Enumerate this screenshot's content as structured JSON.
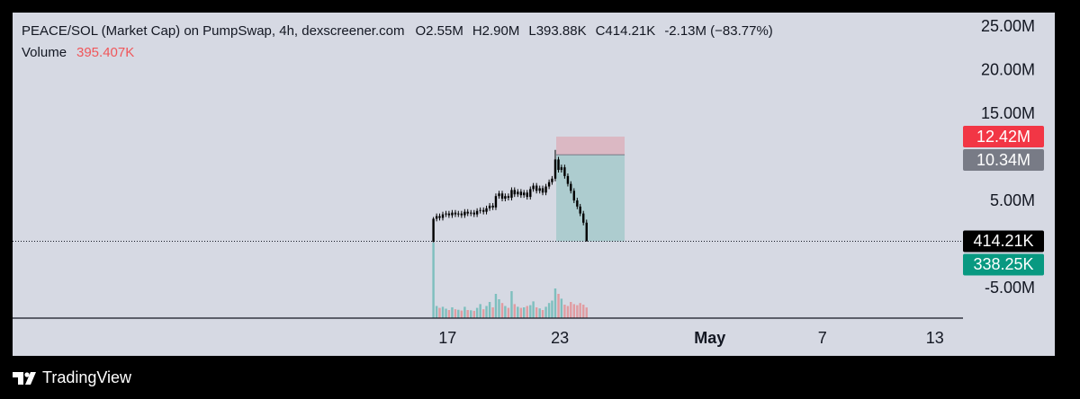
{
  "chart_data": {
    "type": "candlestick",
    "header": {
      "title": "PEACE/SOL (Market Cap) on PumpSwap, 4h, dexscreener.com",
      "ohlc": [
        "O2.55M",
        "H2.90M",
        "L393.88K",
        "C414.21K"
      ],
      "change": "-2.13M (−83.77%)",
      "volume_label": "Volume",
      "volume_value": "395.407K"
    },
    "brand": "TradingView",
    "x": [
      16.25,
      16.42,
      16.58,
      16.75,
      16.92,
      17.08,
      17.25,
      17.42,
      17.58,
      17.75,
      17.92,
      18.08,
      18.25,
      18.42,
      18.58,
      18.75,
      18.92,
      19.08,
      19.25,
      19.42,
      19.58,
      19.75,
      19.92,
      20.08,
      20.25,
      20.42,
      20.58,
      20.75,
      20.92,
      21.08,
      21.25,
      21.42,
      21.58,
      21.75,
      21.92,
      22.08,
      22.25,
      22.42,
      22.58,
      22.75,
      22.92,
      23.08,
      23.25,
      23.42,
      23.58,
      23.75,
      23.92,
      24.08,
      24.25,
      24.42
    ],
    "open": [
      350000,
      3000000,
      3300000,
      3100000,
      3500000,
      3600000,
      3400000,
      3700000,
      3500000,
      3600000,
      3400000,
      3800000,
      3600000,
      3700000,
      3500000,
      3900000,
      4000000,
      3800000,
      4200000,
      4500000,
      4300000,
      5600000,
      5900000,
      5300000,
      5600000,
      5400000,
      6300000,
      5800000,
      6100000,
      5700000,
      6000000,
      5500000,
      6400000,
      6800000,
      6200000,
      6500000,
      6000000,
      6700000,
      7200000,
      7600000,
      9800000,
      8600000,
      8900000,
      7900000,
      7000000,
      6200000,
      5100000,
      4400000,
      3600000,
      2550000
    ],
    "high": [
      3200000,
      3600000,
      3600000,
      3800000,
      3900000,
      3900000,
      4000000,
      4000000,
      3900000,
      3900000,
      4100000,
      4100000,
      4000000,
      4000000,
      4200000,
      4300000,
      4300000,
      4500000,
      4800000,
      4800000,
      5900000,
      6200000,
      6200000,
      5900000,
      5900000,
      6600000,
      6600000,
      6400000,
      6400000,
      6300000,
      6300000,
      6700000,
      7100000,
      7100000,
      6800000,
      6800000,
      7000000,
      7500000,
      7900000,
      10900000,
      10100000,
      9200000,
      9200000,
      8200000,
      7300000,
      6500000,
      5400000,
      4700000,
      3900000,
      2900000
    ],
    "low": [
      300000,
      2700000,
      2800000,
      2800000,
      3200000,
      3100000,
      3100000,
      3200000,
      3200000,
      3100000,
      3100000,
      3300000,
      3300000,
      3200000,
      3200000,
      3600000,
      3500000,
      3500000,
      3900000,
      4000000,
      4000000,
      5300000,
      5000000,
      5000000,
      5100000,
      5100000,
      5500000,
      5500000,
      5400000,
      5400000,
      5200000,
      5200000,
      6100000,
      5900000,
      5900000,
      5700000,
      5700000,
      6400000,
      6900000,
      7300000,
      8300000,
      8300000,
      7600000,
      6700000,
      5900000,
      4800000,
      4100000,
      3300000,
      2250000,
      393880
    ],
    "close": [
      3000000,
      3300000,
      3100000,
      3500000,
      3600000,
      3400000,
      3700000,
      3500000,
      3600000,
      3400000,
      3800000,
      3600000,
      3700000,
      3500000,
      3900000,
      4000000,
      3800000,
      4200000,
      4500000,
      4300000,
      5600000,
      5900000,
      5300000,
      5600000,
      5400000,
      6300000,
      5800000,
      6100000,
      5700000,
      6000000,
      5500000,
      6400000,
      6800000,
      6200000,
      6500000,
      6000000,
      6700000,
      7200000,
      7600000,
      9800000,
      8600000,
      8900000,
      7900000,
      7000000,
      6200000,
      5100000,
      4400000,
      3600000,
      2550000,
      414210
    ],
    "volume": [
      2800000,
      450000,
      380000,
      420000,
      350000,
      300000,
      400000,
      330000,
      310000,
      280000,
      420000,
      300000,
      290000,
      270000,
      380000,
      520000,
      330000,
      450000,
      600000,
      400000,
      900000,
      700000,
      560000,
      450000,
      380000,
      1000000,
      520000,
      420000,
      380000,
      400000,
      450000,
      480000,
      620000,
      400000,
      360000,
      300000,
      420000,
      560000,
      650000,
      1100000,
      900000,
      720000,
      500000,
      450000,
      600000,
      520000,
      480000,
      560000,
      500000,
      395407
    ],
    "candle_color": "#000000",
    "volume_up_color": "rgba(38,166,154,0.5)",
    "volume_down_color": "rgba(239,83,80,0.45)",
    "vlim": [
      0,
      2900000
    ],
    "xlim": [
      -6.2,
      44.5
    ],
    "xticks": [
      17,
      23,
      {
        "value": 31,
        "label": "May"
      },
      {
        "value": 37,
        "label": "7"
      },
      {
        "value": 43,
        "label": "13"
      }
    ],
    "ylim": [
      -8400000,
      26650000
    ],
    "yticks": [
      {
        "value": 25000000,
        "label": "25.00M"
      },
      {
        "value": 20000000,
        "label": "20.00M"
      },
      {
        "value": 15000000,
        "label": "15.00M"
      },
      {
        "value": 5000000,
        "label": "5.00M"
      },
      {
        "value": -5000000,
        "label": "-5.00M"
      }
    ],
    "price_labels": [
      {
        "value": 12420000,
        "label": "12.42M",
        "color": "#f23645"
      },
      {
        "value": 10340000,
        "label": "10.34M",
        "color": "#787b86"
      },
      {
        "value": 414210,
        "label": "414.21K",
        "color": "#000000"
      },
      {
        "value": 338250,
        "label": "338.25K",
        "color": "#089981"
      }
    ],
    "position_x": [
      22.8,
      26.45
    ],
    "stop_color": "rgba(242,54,69,0.2)",
    "target_color": "rgba(8,153,129,0.2)"
  }
}
